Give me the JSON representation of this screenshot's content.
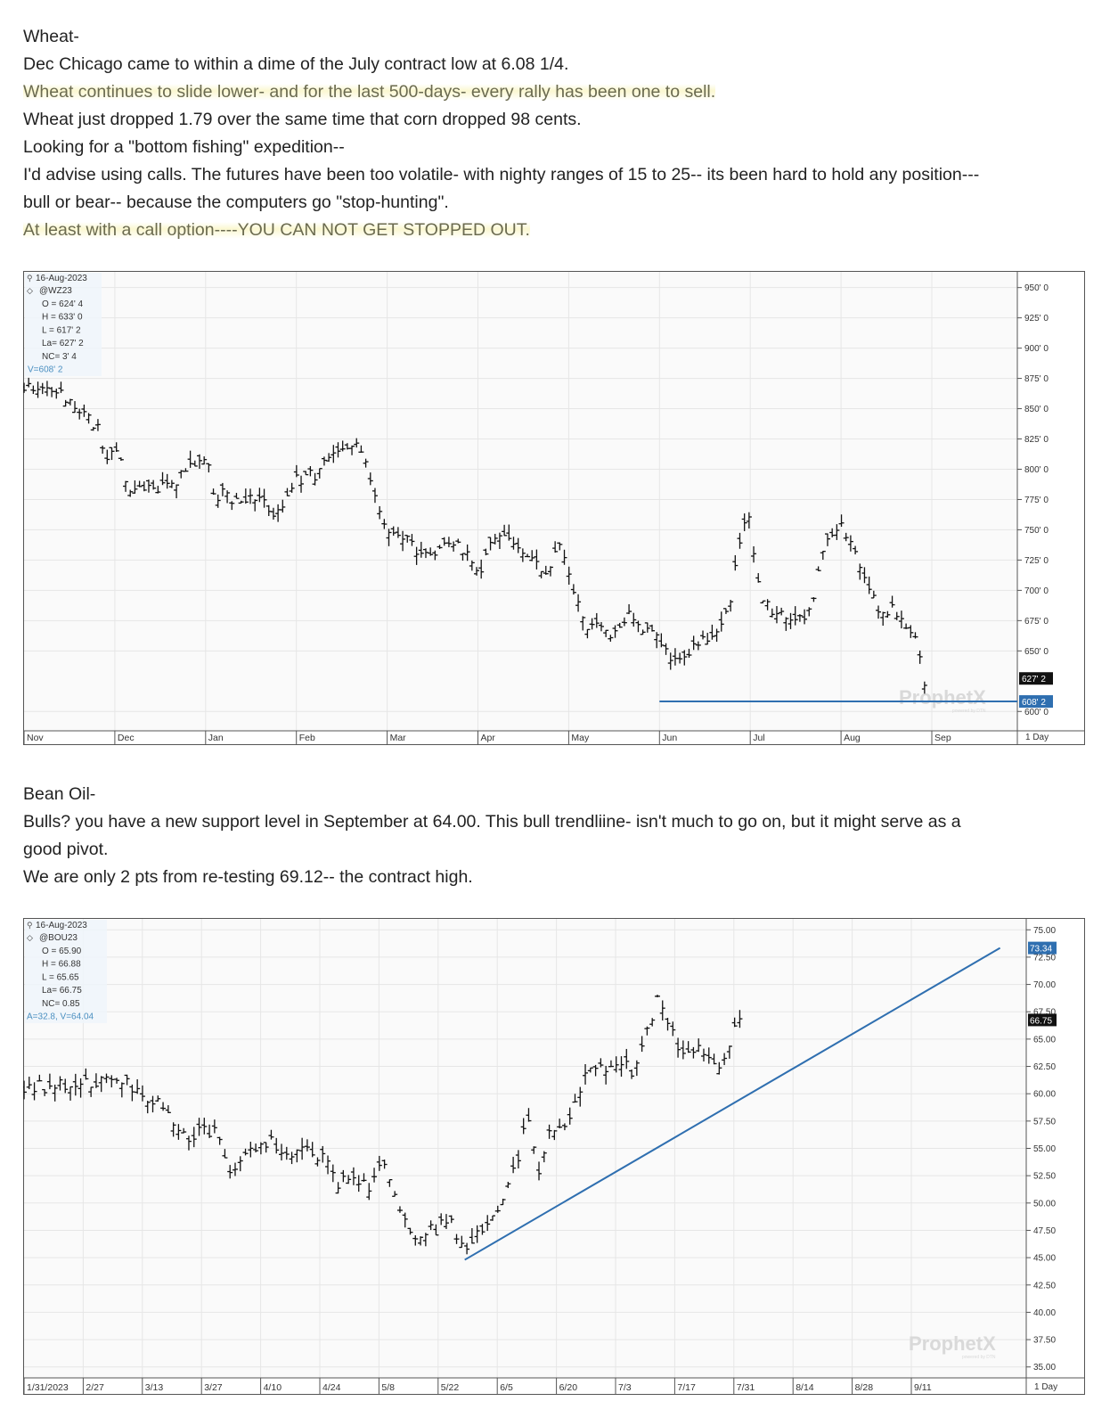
{
  "wheat_text": {
    "heading": "Wheat-",
    "line1": "Dec Chicago came to within a dime of the July contract low at 6.08 1/4.",
    "line2": "Wheat continues to slide lower- and for the last 500-days- every rally has been one to sell.",
    "line3": "Wheat just dropped 1.79 over the same time that corn dropped 98 cents.",
    "line4": "Looking for a \"bottom fishing\" expedition--",
    "line5": "I'd advise using calls.  The futures have been too volatile- with nighty ranges of 15 to 25-- its been hard to hold any position---",
    "line6": "bull or bear-- because the computers go \"stop-hunting\".",
    "line7": "At least with a call option----YOU CAN NOT GET STOPPED OUT."
  },
  "beanoil_text": {
    "heading": "Bean Oil-",
    "line1": "Bulls? you have a new support level in September at 64.00. This bull trendliine- isn't much to go on, but it might serve as a",
    "line2": "good pivot.",
    "line3": "We are only 2 pts from re-testing 69.12-- the contract high."
  },
  "chart_data": [
    {
      "type": "ohlc",
      "info": {
        "date": "16-Aug-2023",
        "symbol": "@WZ23",
        "lines": [
          "O = 624' 4",
          "H = 633' 0",
          "L = 617' 2",
          "La= 627' 2",
          "NC= 3' 4"
        ],
        "volume": "V=608' 2"
      },
      "watermark": "ProphetX",
      "watermark_sub": "powered by DTN",
      "x_tick_labels": [
        "Nov",
        "Dec",
        "Jan",
        "Feb",
        "Mar",
        "Apr",
        "May",
        "Jun",
        "Jul",
        "Aug",
        "Sep"
      ],
      "y_tick_labels": [
        "950' 0",
        "925' 0",
        "900' 0",
        "875' 0",
        "850' 0",
        "825' 0",
        "800' 0",
        "775' 0",
        "750' 0",
        "725' 0",
        "700' 0",
        "675' 0",
        "650' 0",
        "600' 0"
      ],
      "y_tick_values": [
        950,
        925,
        900,
        875,
        850,
        825,
        800,
        775,
        750,
        725,
        700,
        675,
        650,
        600
      ],
      "ylim": [
        584,
        963
      ],
      "last_label": "627' 2",
      "last_value": 627.25,
      "support_label": "608' 2",
      "support_value": 608.25,
      "period_label": "1 Day",
      "support_line": {
        "from_month": 7.0,
        "to_month": 10.8,
        "value": 608.25
      },
      "anchors": [
        [
          0.0,
          868
        ],
        [
          0.3,
          870
        ],
        [
          0.8,
          835
        ],
        [
          0.9,
          810
        ],
        [
          1.05,
          812
        ],
        [
          1.15,
          780
        ],
        [
          1.5,
          785
        ],
        [
          1.75,
          795
        ],
        [
          2.0,
          812
        ],
        [
          2.1,
          780
        ],
        [
          2.35,
          775
        ],
        [
          2.7,
          770
        ],
        [
          2.8,
          762
        ],
        [
          3.0,
          790
        ],
        [
          3.2,
          795
        ],
        [
          3.45,
          815
        ],
        [
          3.65,
          818
        ],
        [
          3.85,
          790
        ],
        [
          3.95,
          750
        ],
        [
          4.2,
          745
        ],
        [
          4.4,
          728
        ],
        [
          4.8,
          738
        ],
        [
          5.0,
          712
        ],
        [
          5.1,
          732
        ],
        [
          5.3,
          747
        ],
        [
          5.55,
          727
        ],
        [
          5.75,
          718
        ],
        [
          5.9,
          737
        ],
        [
          6.05,
          700
        ],
        [
          6.2,
          672
        ],
        [
          6.45,
          665
        ],
        [
          6.65,
          680
        ],
        [
          6.95,
          660
        ],
        [
          7.15,
          640
        ],
        [
          7.3,
          650
        ],
        [
          7.55,
          663
        ],
        [
          7.75,
          682
        ],
        [
          7.88,
          735
        ],
        [
          7.98,
          768
        ],
        [
          8.1,
          695
        ],
        [
          8.3,
          680
        ],
        [
          8.65,
          680
        ],
        [
          8.8,
          735
        ],
        [
          9.0,
          755
        ],
        [
          9.2,
          723
        ],
        [
          9.4,
          685
        ],
        [
          9.6,
          685
        ],
        [
          9.8,
          662
        ],
        [
          9.92,
          627
        ]
      ]
    },
    {
      "type": "ohlc",
      "info": {
        "date": "16-Aug-2023",
        "symbol": "@BOU23",
        "lines": [
          "O = 65.90",
          "H = 66.88",
          "L = 65.65",
          "La= 66.75",
          "NC= 0.85"
        ],
        "volume": "A=32.8, V=64.04"
      },
      "watermark": "ProphetX",
      "watermark_sub": "powered by DTN",
      "x_tick_labels": [
        "1/31/2023",
        "2/27",
        "3/13",
        "3/27",
        "4/10",
        "4/24",
        "5/8",
        "5/22",
        "6/5",
        "6/20",
        "7/3",
        "7/17",
        "7/31",
        "8/14",
        "8/28",
        "9/11"
      ],
      "y_tick_labels": [
        "75.00",
        "72.50",
        "70.00",
        "67.50",
        "65.00",
        "62.50",
        "60.00",
        "57.50",
        "55.00",
        "52.50",
        "50.00",
        "47.50",
        "45.00",
        "42.50",
        "40.00",
        "37.50",
        "35.00"
      ],
      "y_tick_values": [
        75.0,
        72.5,
        70.0,
        67.5,
        65.0,
        62.5,
        60.0,
        57.5,
        55.0,
        52.5,
        50.0,
        47.5,
        45.0,
        42.5,
        40.0,
        37.5,
        35.0
      ],
      "ylim": [
        34.0,
        76.0
      ],
      "last_label": "66.75",
      "last_value": 66.75,
      "trend_label": "73.34",
      "trend_value": 73.34,
      "period_label": "1 Day",
      "trendline": [
        [
          7.45,
          44.8
        ],
        [
          16.5,
          73.34
        ]
      ],
      "anchors": [
        [
          0.0,
          60.5
        ],
        [
          1.2,
          60.8
        ],
        [
          1.6,
          61.2
        ],
        [
          2.0,
          59.8
        ],
        [
          2.4,
          58.5
        ],
        [
          2.8,
          56.0
        ],
        [
          3.2,
          56.8
        ],
        [
          3.5,
          52.5
        ],
        [
          3.85,
          55.0
        ],
        [
          4.15,
          56.0
        ],
        [
          4.5,
          54.5
        ],
        [
          4.9,
          55.0
        ],
        [
          5.3,
          52.0
        ],
        [
          5.8,
          51.5
        ],
        [
          6.1,
          53.5
        ],
        [
          6.3,
          50.5
        ],
        [
          6.6,
          47.0
        ],
        [
          6.9,
          47.5
        ],
        [
          7.2,
          48.5
        ],
        [
          7.45,
          45.2
        ],
        [
          7.8,
          48.0
        ],
        [
          8.1,
          50.0
        ],
        [
          8.3,
          53.0
        ],
        [
          8.55,
          58.5
        ],
        [
          8.7,
          52.0
        ],
        [
          8.9,
          56.5
        ],
        [
          9.15,
          57.0
        ],
        [
          9.3,
          59.0
        ],
        [
          9.5,
          62.0
        ],
        [
          9.8,
          62.0
        ],
        [
          10.1,
          63.0
        ],
        [
          10.3,
          62.0
        ],
        [
          10.55,
          66.0
        ],
        [
          10.75,
          69.0
        ],
        [
          10.95,
          66.0
        ],
        [
          11.15,
          63.0
        ],
        [
          11.45,
          64.0
        ],
        [
          11.7,
          62.5
        ],
        [
          11.9,
          64.5
        ],
        [
          12.1,
          66.75
        ]
      ]
    }
  ]
}
